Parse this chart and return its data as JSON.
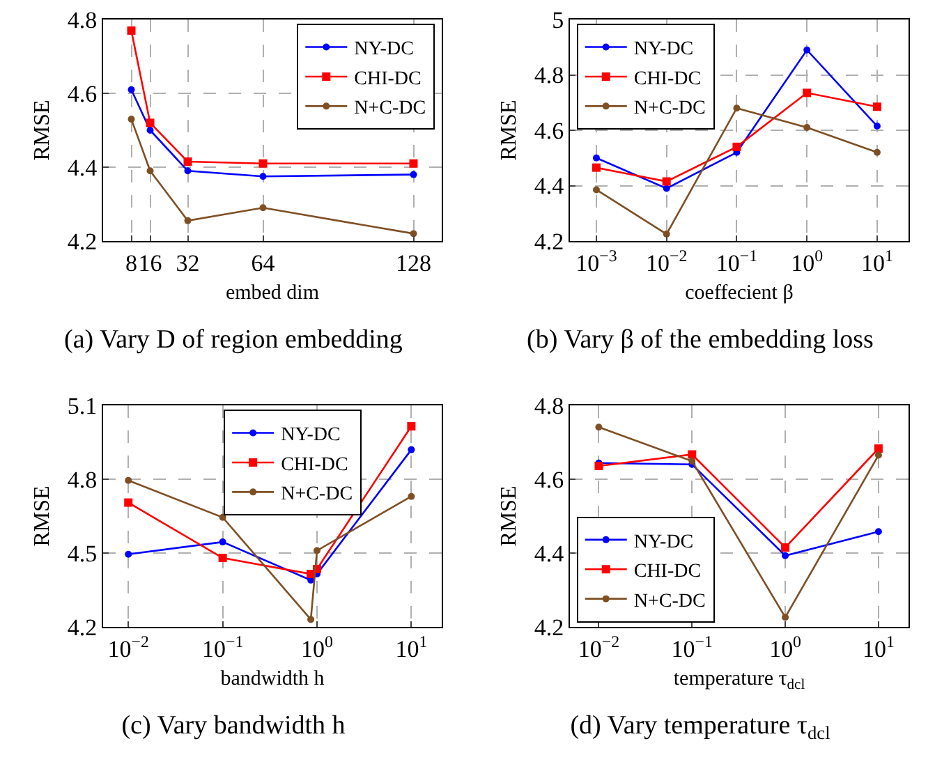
{
  "chart_data": [
    {
      "type": "line",
      "title": "(a) Vary D of region embedding",
      "xlabel": "embed dim",
      "ylabel": "RMSE",
      "x": [
        8,
        16,
        32,
        64,
        128
      ],
      "xlim": [
        -4,
        140
      ],
      "xticks": [
        8,
        16,
        32,
        64,
        128
      ],
      "ylim": [
        4.2,
        4.8
      ],
      "yticks": [
        4.2,
        4.4,
        4.6,
        4.8
      ],
      "grid": true,
      "legend": "top right",
      "series": [
        {
          "name": "NY-DC",
          "color": "#0000ff",
          "marker": "circle",
          "values": [
            4.61,
            4.5,
            4.39,
            4.375,
            4.38
          ]
        },
        {
          "name": "CHI-DC",
          "color": "#ff0000",
          "marker": "square",
          "values": [
            4.77,
            4.52,
            4.415,
            4.41,
            4.41
          ]
        },
        {
          "name": "N+C-DC",
          "color": "#7f4f24",
          "marker": "circle",
          "values": [
            4.53,
            4.39,
            4.255,
            4.29,
            4.22
          ]
        }
      ]
    },
    {
      "type": "line",
      "title": "(b) Vary β of the embedding loss",
      "xlabel": "coeffecient β",
      "ylabel": "RMSE",
      "log": "x",
      "x": [
        0.001,
        0.01,
        0.1,
        1,
        10
      ],
      "xlim": [
        0.00042,
        28
      ],
      "xticks": [
        {
          "value": 0.001,
          "label": "10$^{−3}$"
        },
        {
          "value": 0.01,
          "label": "10$^{−2}$"
        },
        {
          "value": 0.1,
          "label": "10$^{−1}$"
        },
        {
          "value": 1,
          "label": "10$^{0}$"
        },
        {
          "value": 10,
          "label": "10$^{1}$"
        }
      ],
      "ylim": [
        4.2,
        5
      ],
      "yticks": [
        4.2,
        4.4,
        4.6,
        4.8,
        5
      ],
      "grid": true,
      "legend": "top left",
      "series": [
        {
          "name": "NY-DC",
          "color": "#0000ff",
          "marker": "circle",
          "values": [
            4.5,
            4.39,
            4.52,
            4.89,
            4.615
          ]
        },
        {
          "name": "CHI-DC",
          "color": "#ff0000",
          "marker": "square",
          "values": [
            4.465,
            4.415,
            4.54,
            4.735,
            4.685
          ]
        },
        {
          "name": "N+C-DC",
          "color": "#7f4f24",
          "marker": "circle",
          "values": [
            4.385,
            4.225,
            4.68,
            4.61,
            4.52
          ]
        }
      ]
    },
    {
      "type": "line",
      "title": "(c) Vary bandwidth h",
      "xlabel": "bandwidth h",
      "ylabel": "RMSE",
      "log": "x",
      "x": [
        0.01,
        0.1,
        0.86,
        1,
        10
      ],
      "xlim": [
        0.0054,
        21
      ],
      "xticks": [
        {
          "value": 0.01,
          "label": "10$^{−2}$"
        },
        {
          "value": 0.1,
          "label": "10$^{−1}$"
        },
        {
          "value": 1,
          "label": "10$^{0}$"
        },
        {
          "value": 10,
          "label": "10$^{1}$"
        }
      ],
      "ylim": [
        4.2,
        5.1
      ],
      "yticks": [
        4.2,
        4.5,
        4.8,
        5.1
      ],
      "grid": true,
      "legend": "top",
      "series": [
        {
          "name": "NY-DC",
          "color": "#0000ff",
          "marker": "circle",
          "values": [
            4.495,
            4.545,
            4.39,
            4.415,
            4.92
          ]
        },
        {
          "name": "CHI-DC",
          "color": "#ff0000",
          "marker": "square",
          "values": [
            4.705,
            4.48,
            4.415,
            4.435,
            5.015
          ]
        },
        {
          "name": "N+C-DC",
          "color": "#7f4f24",
          "marker": "circle",
          "values": [
            4.795,
            4.645,
            4.23,
            4.51,
            4.73
          ]
        }
      ]
    },
    {
      "type": "line",
      "title": "(d) Vary temperature τ$_{dcl}$",
      "xlabel": "temperature τ$_{dcl}$",
      "ylabel": "RMSE",
      "log": "x",
      "x": [
        0.01,
        0.1,
        1,
        10
      ],
      "xlim": [
        0.0049,
        21
      ],
      "xticks": [
        {
          "value": 0.01,
          "label": "10$^{−2}$"
        },
        {
          "value": 0.1,
          "label": "10$^{−1}$"
        },
        {
          "value": 1,
          "label": "10$^{0}$"
        },
        {
          "value": 10,
          "label": "10$^{1}$"
        }
      ],
      "ylim": [
        4.2,
        4.8
      ],
      "yticks": [
        4.2,
        4.4,
        4.6,
        4.8
      ],
      "grid": true,
      "legend": "bottom left",
      "series": [
        {
          "name": "NY-DC",
          "color": "#0000ff",
          "marker": "circle",
          "values": [
            4.644,
            4.64,
            4.393,
            4.458
          ]
        },
        {
          "name": "CHI-DC",
          "color": "#ff0000",
          "marker": "square",
          "values": [
            4.636,
            4.667,
            4.415,
            4.683
          ]
        },
        {
          "name": "N+C-DC",
          "color": "#7f4f24",
          "marker": "circle",
          "values": [
            4.741,
            4.649,
            4.226,
            4.665
          ]
        }
      ]
    }
  ]
}
